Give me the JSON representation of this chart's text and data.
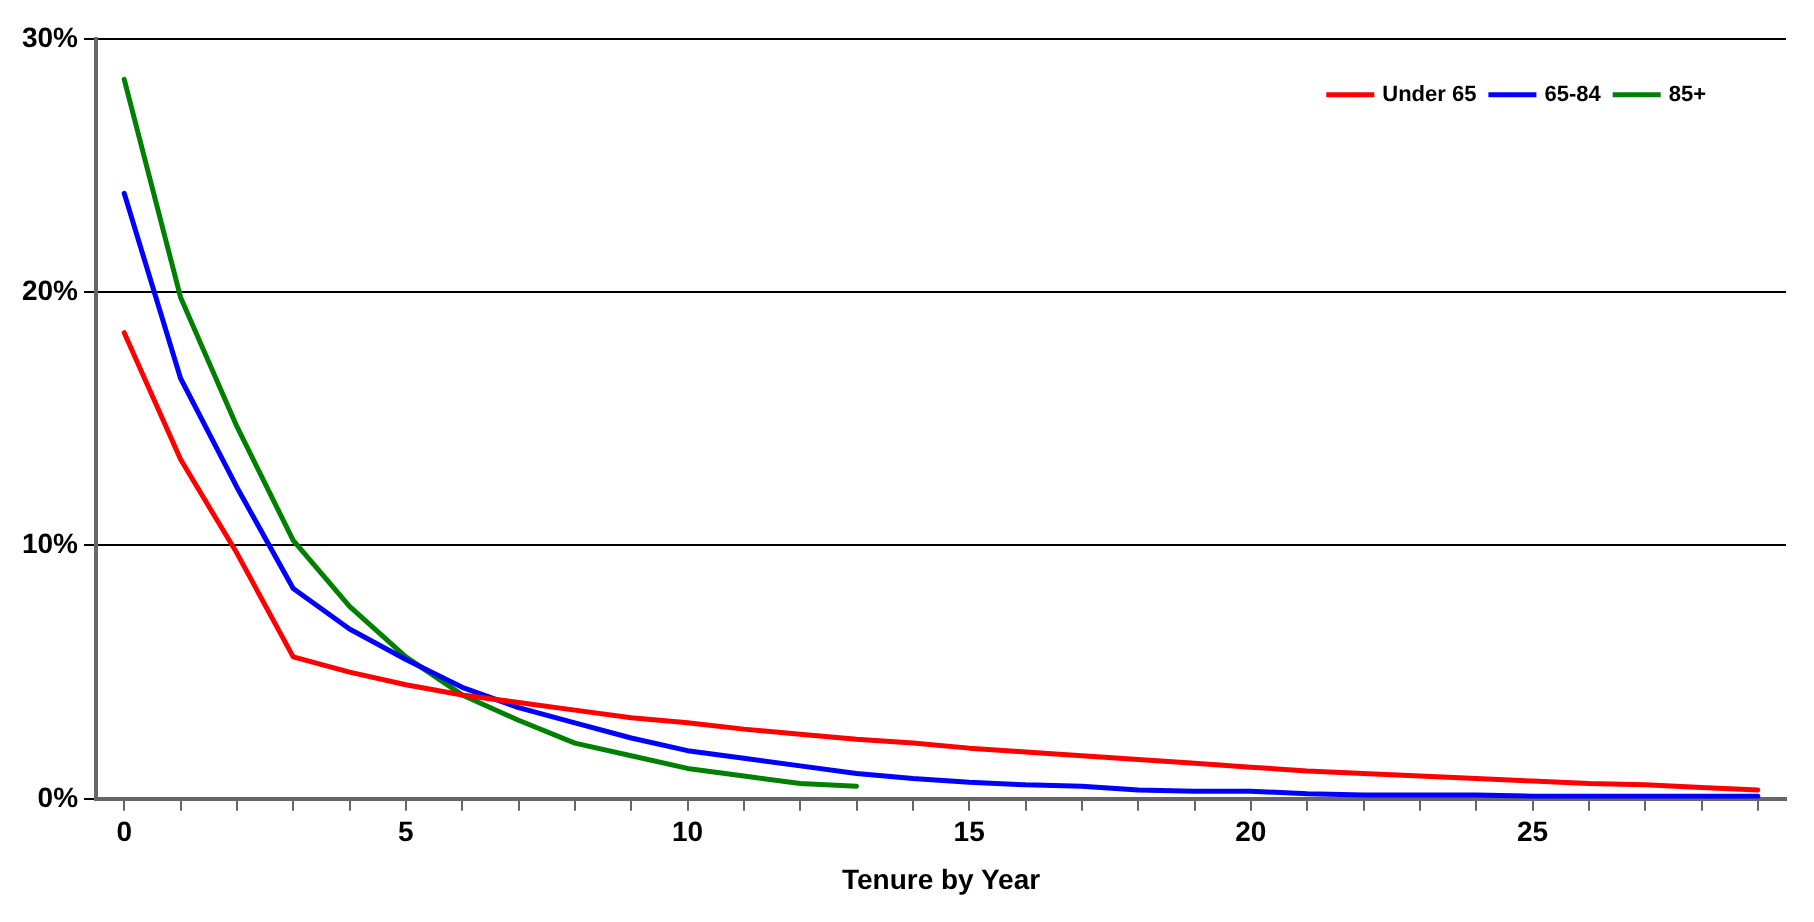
{
  "chart_data": {
    "type": "line",
    "xlabel": "Tenure by Year",
    "x": [
      0,
      1,
      2,
      3,
      4,
      5,
      6,
      7,
      8,
      9,
      10,
      11,
      12,
      13,
      14,
      15,
      16,
      17,
      18,
      19,
      20,
      21,
      22,
      23,
      24,
      25,
      26,
      27,
      28,
      29
    ],
    "series": [
      {
        "name": "Under 65",
        "color": "#ff0000",
        "values": [
          18.4,
          13.4,
          9.7,
          5.6,
          5.0,
          4.5,
          4.1,
          3.8,
          3.5,
          3.2,
          3.0,
          2.75,
          2.55,
          2.35,
          2.2,
          2.0,
          1.85,
          1.7,
          1.55,
          1.4,
          1.25,
          1.1,
          1.0,
          0.9,
          0.8,
          0.7,
          0.6,
          0.55,
          0.45,
          0.35
        ]
      },
      {
        "name": "65-84",
        "color": "#0000ff",
        "values": [
          23.9,
          16.6,
          12.3,
          8.3,
          6.7,
          5.5,
          4.4,
          3.6,
          3.0,
          2.4,
          1.9,
          1.6,
          1.3,
          1.0,
          0.8,
          0.65,
          0.55,
          0.5,
          0.35,
          0.3,
          0.3,
          0.2,
          0.15,
          0.15,
          0.15,
          0.1,
          0.1,
          0.1,
          0.1,
          0.1
        ]
      },
      {
        "name": "85+",
        "color": "#008000",
        "x": [
          0,
          1,
          2,
          3,
          4,
          5,
          6,
          7,
          8,
          9,
          10,
          11,
          12,
          13
        ],
        "values": [
          28.4,
          19.8,
          14.7,
          10.2,
          7.6,
          5.6,
          4.1,
          3.1,
          2.2,
          1.7,
          1.2,
          0.9,
          0.6,
          0.5
        ]
      }
    ],
    "xlim": [
      -0.5,
      29.5
    ],
    "xticks": [
      0,
      {
        "value": 1,
        "label": null
      },
      {
        "value": 2,
        "label": null
      },
      {
        "value": 3,
        "label": null
      },
      {
        "value": 4,
        "label": null
      },
      5,
      {
        "value": 6,
        "label": null
      },
      {
        "value": 7,
        "label": null
      },
      {
        "value": 8,
        "label": null
      },
      {
        "value": 9,
        "label": null
      },
      10,
      {
        "value": 11,
        "label": null
      },
      {
        "value": 12,
        "label": null
      },
      {
        "value": 13,
        "label": null
      },
      {
        "value": 14,
        "label": null
      },
      15,
      {
        "value": 16,
        "label": null
      },
      {
        "value": 17,
        "label": null
      },
      {
        "value": 18,
        "label": null
      },
      {
        "value": 19,
        "label": null
      },
      20,
      {
        "value": 21,
        "label": null
      },
      {
        "value": 22,
        "label": null
      },
      {
        "value": 23,
        "label": null
      },
      {
        "value": 24,
        "label": null
      },
      25,
      {
        "value": 26,
        "label": null
      },
      {
        "value": 27,
        "label": null
      },
      {
        "value": 28,
        "label": null
      },
      {
        "value": 29,
        "label": null
      }
    ],
    "ylim": [
      0,
      30
    ],
    "yticks": [
      {
        "value": 0,
        "label": "0%"
      },
      {
        "value": 10,
        "label": "10%"
      },
      {
        "value": 20,
        "label": "20%"
      },
      {
        "value": 30,
        "label": "30%"
      }
    ],
    "grid": "y",
    "legend": "top right",
    "marker": "none",
    "line_style": "solid"
  }
}
